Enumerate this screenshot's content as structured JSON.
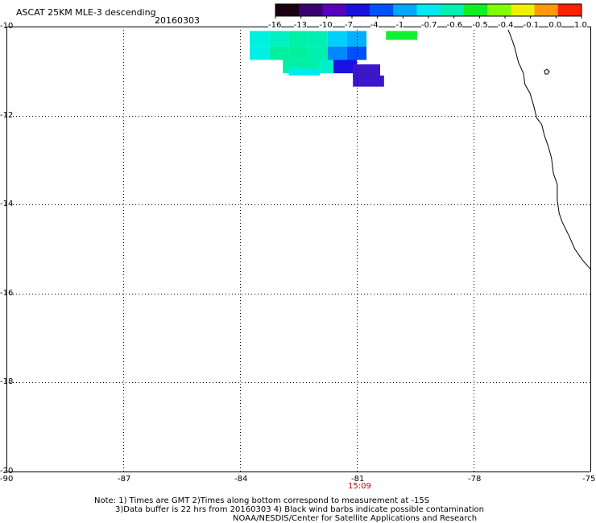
{
  "title": "ASCAT 25KM MLE-3 descending",
  "date": "20160303",
  "colorbar": {
    "labels": [
      "-16",
      "-13",
      "-10",
      "-7",
      "-4",
      "-1",
      "-0.7",
      "-0.6",
      "-0.5",
      "-0.4",
      "-0.1",
      "0.0",
      "1.0"
    ],
    "colors": [
      "#1a0010",
      "#3a0070",
      "#5a00c0",
      "#1a10e0",
      "#0050ff",
      "#00a8ff",
      "#00eaf0",
      "#00f0b0",
      "#10f020",
      "#80ff00",
      "#f0f000",
      "#ff9a00",
      "#ff2000"
    ]
  },
  "map": {
    "lon_range": [
      -90,
      -75
    ],
    "lat_range": [
      -20,
      -10
    ],
    "lon_ticks": [
      "-90",
      "-87",
      "-84",
      "-81",
      "-78",
      "-75"
    ],
    "lat_ticks": [
      "-10",
      "-12",
      "-14",
      "-16",
      "-18",
      "-20"
    ],
    "grid": true,
    "pass_time": "15:09",
    "pass_time_color": "#cc0000",
    "cells": [
      {
        "lon": -83.75,
        "lat": -10.1,
        "w": 0.5,
        "h": 0.35,
        "color": "#00f0e0"
      },
      {
        "lon": -83.25,
        "lat": -10.1,
        "w": 0.5,
        "h": 0.35,
        "color": "#00f0c0"
      },
      {
        "lon": -82.75,
        "lat": -10.1,
        "w": 0.5,
        "h": 0.35,
        "color": "#00f0a8"
      },
      {
        "lon": -82.25,
        "lat": -10.1,
        "w": 0.5,
        "h": 0.35,
        "color": "#00f0b4"
      },
      {
        "lon": -81.75,
        "lat": -10.1,
        "w": 0.5,
        "h": 0.35,
        "color": "#00d0f8"
      },
      {
        "lon": -81.25,
        "lat": -10.1,
        "w": 0.5,
        "h": 0.35,
        "color": "#00b0ff"
      },
      {
        "lon": -80.25,
        "lat": -10.1,
        "w": 0.8,
        "h": 0.2,
        "color": "#10f030"
      },
      {
        "lon": -83.75,
        "lat": -10.45,
        "w": 0.5,
        "h": 0.3,
        "color": "#00f0e8"
      },
      {
        "lon": -83.25,
        "lat": -10.45,
        "w": 0.5,
        "h": 0.3,
        "color": "#00f0a0"
      },
      {
        "lon": -82.75,
        "lat": -10.45,
        "w": 0.5,
        "h": 0.3,
        "color": "#00f09c"
      },
      {
        "lon": -82.25,
        "lat": -10.45,
        "w": 0.5,
        "h": 0.3,
        "color": "#00f0b0"
      },
      {
        "lon": -81.75,
        "lat": -10.45,
        "w": 0.5,
        "h": 0.3,
        "color": "#0088ff"
      },
      {
        "lon": -81.25,
        "lat": -10.45,
        "w": 0.5,
        "h": 0.3,
        "color": "#0050ff"
      },
      {
        "lon": -82.9,
        "lat": -10.75,
        "w": 1.0,
        "h": 0.3,
        "color": "#00f0a8"
      },
      {
        "lon": -82.0,
        "lat": -10.75,
        "w": 0.5,
        "h": 0.3,
        "color": "#00f0c8"
      },
      {
        "lon": -81.6,
        "lat": -10.75,
        "w": 0.6,
        "h": 0.3,
        "color": "#1a10e0"
      },
      {
        "lon": -81.1,
        "lat": -10.85,
        "w": 0.7,
        "h": 0.3,
        "color": "#3a18c8"
      },
      {
        "lon": -82.75,
        "lat": -10.95,
        "w": 0.8,
        "h": 0.15,
        "color": "#00eaf0"
      },
      {
        "lon": -81.1,
        "lat": -11.1,
        "w": 0.8,
        "h": 0.25,
        "color": "#3a18c8"
      }
    ],
    "coastline": [
      [
        -77.15,
        -10.0
      ],
      [
        -77.05,
        -10.2
      ],
      [
        -76.95,
        -10.45
      ],
      [
        -76.85,
        -10.8
      ],
      [
        -76.72,
        -11.05
      ],
      [
        -76.68,
        -11.3
      ],
      [
        -76.55,
        -11.5
      ],
      [
        -76.45,
        -11.8
      ],
      [
        -76.38,
        -12.05
      ],
      [
        -76.25,
        -12.2
      ],
      [
        -76.18,
        -12.45
      ],
      [
        -76.08,
        -12.7
      ],
      [
        -76.0,
        -12.95
      ],
      [
        -75.95,
        -13.3
      ],
      [
        -75.85,
        -13.55
      ],
      [
        -75.85,
        -13.9
      ],
      [
        -75.8,
        -14.2
      ],
      [
        -75.72,
        -14.4
      ],
      [
        -75.55,
        -14.7
      ],
      [
        -75.4,
        -15.0
      ],
      [
        -75.2,
        -15.25
      ],
      [
        -75.05,
        -15.4
      ],
      [
        -75.0,
        -15.45
      ]
    ]
  },
  "notes": [
    "Note: 1) Times are GMT 2)Times along bottom correspond to measurement at -15S",
    "3)Data buffer is 22 hrs from 20160303 4) Black wind barbs indicate possible contamination",
    "NOAA/NESDIS/Center for Satellite Applications and Research"
  ]
}
